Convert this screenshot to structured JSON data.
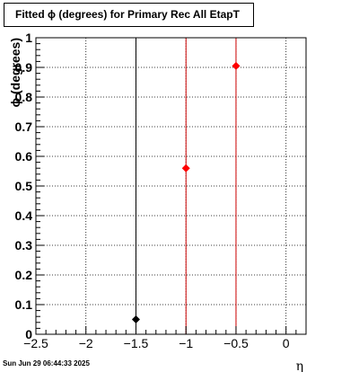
{
  "chart_data": {
    "type": "scatter",
    "title": "Fitted ϕ (degrees) for Primary Rec All EtapT",
    "xlabel": "η",
    "ylabel": "ϕ (degrees)",
    "xlim": [
      -2.5,
      0.2
    ],
    "ylim": [
      0,
      1
    ],
    "xticks": [
      -2.5,
      -2,
      -1.5,
      -1,
      -0.5,
      0
    ],
    "xtick_labels": [
      "−2.5",
      "−2",
      "−1.5",
      "−1",
      "−0.5",
      "0"
    ],
    "yticks": [
      0,
      0.1,
      0.2,
      0.3,
      0.4,
      0.5,
      0.6,
      0.7,
      0.8,
      0.9,
      1
    ],
    "ytick_labels": [
      "0",
      "0.1",
      "0.2",
      "0.3",
      "0.4",
      "0.5",
      "0.6",
      "0.7",
      "0.8",
      "0.9",
      "1"
    ],
    "grid": true,
    "series": [
      {
        "color": "#000000",
        "points": [
          {
            "x": -1.5,
            "y": 0.05
          }
        ]
      },
      {
        "color": "#ff0000",
        "points": [
          {
            "x": -1.0,
            "y": 0.56
          },
          {
            "x": -0.5,
            "y": 0.905
          }
        ]
      }
    ],
    "vertical_lines": [
      {
        "x": -1.5,
        "color": "#000000"
      },
      {
        "x": -1.0,
        "color": "#cc0000"
      },
      {
        "x": -0.5,
        "color": "#cc0000"
      }
    ]
  },
  "footer": {
    "timestamp": "Sun Jun 29 06:44:33 2025"
  }
}
